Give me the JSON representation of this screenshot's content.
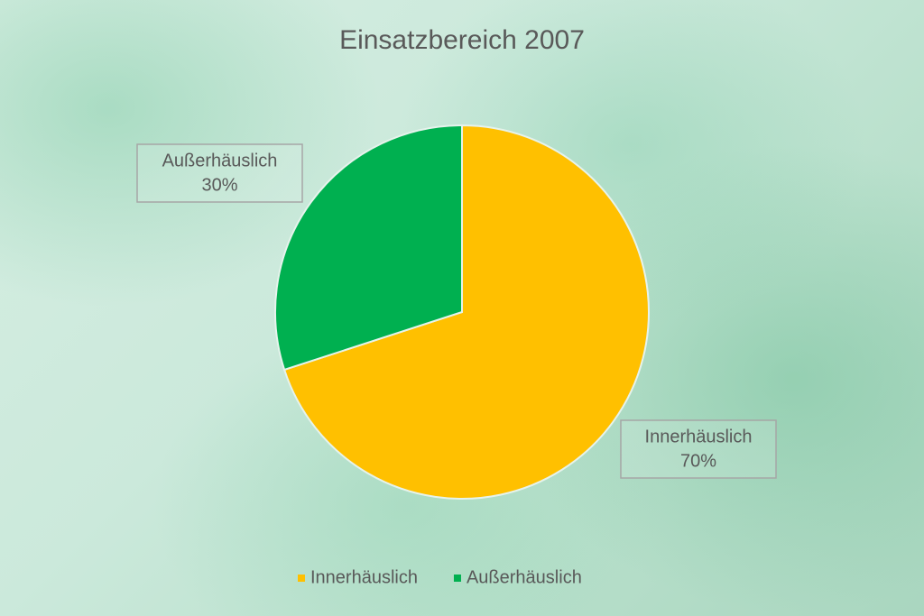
{
  "chart_data": {
    "type": "pie",
    "title": "Einsatzbereich 2007",
    "categories": [
      "Innerhäuslich",
      "Außerhäuslich"
    ],
    "values": [
      70,
      30
    ],
    "value_labels": [
      "70%",
      "30%"
    ],
    "colors": [
      "#FFC000",
      "#00B050"
    ],
    "legend": "bottom"
  }
}
